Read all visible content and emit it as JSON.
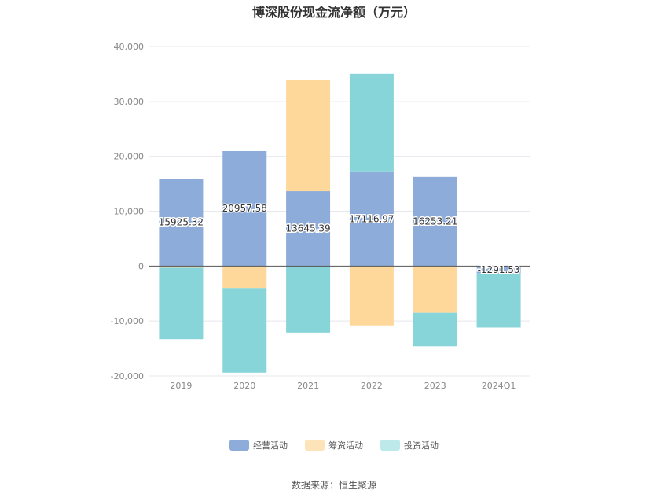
{
  "chart_data": {
    "type": "bar",
    "stacked": true,
    "title": "博深股份现金流净额（万元）",
    "categories": [
      "2019",
      "2020",
      "2021",
      "2022",
      "2023",
      "2024Q1"
    ],
    "series": [
      {
        "name": "经营活动",
        "color": "#8eacd9",
        "values": [
          15925.32,
          20957.58,
          13645.39,
          17116.97,
          16253.21,
          -1291.53
        ]
      },
      {
        "name": "筹资活动",
        "color": "#fdd89a",
        "values": [
          -300,
          -4000,
          20200,
          -10800,
          -8500,
          0
        ]
      },
      {
        "name": "投资活动",
        "color": "#88d5d9",
        "values": [
          -13000,
          -15400,
          -12100,
          17900,
          -6100,
          -9900
        ]
      }
    ],
    "data_labels": [
      "15925.32",
      "20957.58",
      "13645.39",
      "17116.97",
      "16253.21",
      "-1291.53"
    ],
    "ylim": [
      -20000,
      40000
    ],
    "yticks": [
      40000,
      30000,
      20000,
      10000,
      0,
      -10000,
      -20000
    ],
    "ytick_labels": [
      "40,000",
      "30,000",
      "20,000",
      "10,000",
      "0",
      "-10,000",
      "-20,000"
    ],
    "grid": true,
    "legend_position": "bottom"
  },
  "legend": {
    "items": [
      {
        "label": "经营活动",
        "color": "#8eacd9"
      },
      {
        "label": "筹资活动",
        "color": "#fde3b8"
      },
      {
        "label": "投资活动",
        "color": "#bde9ea"
      }
    ]
  },
  "source": "数据来源：恒生聚源"
}
